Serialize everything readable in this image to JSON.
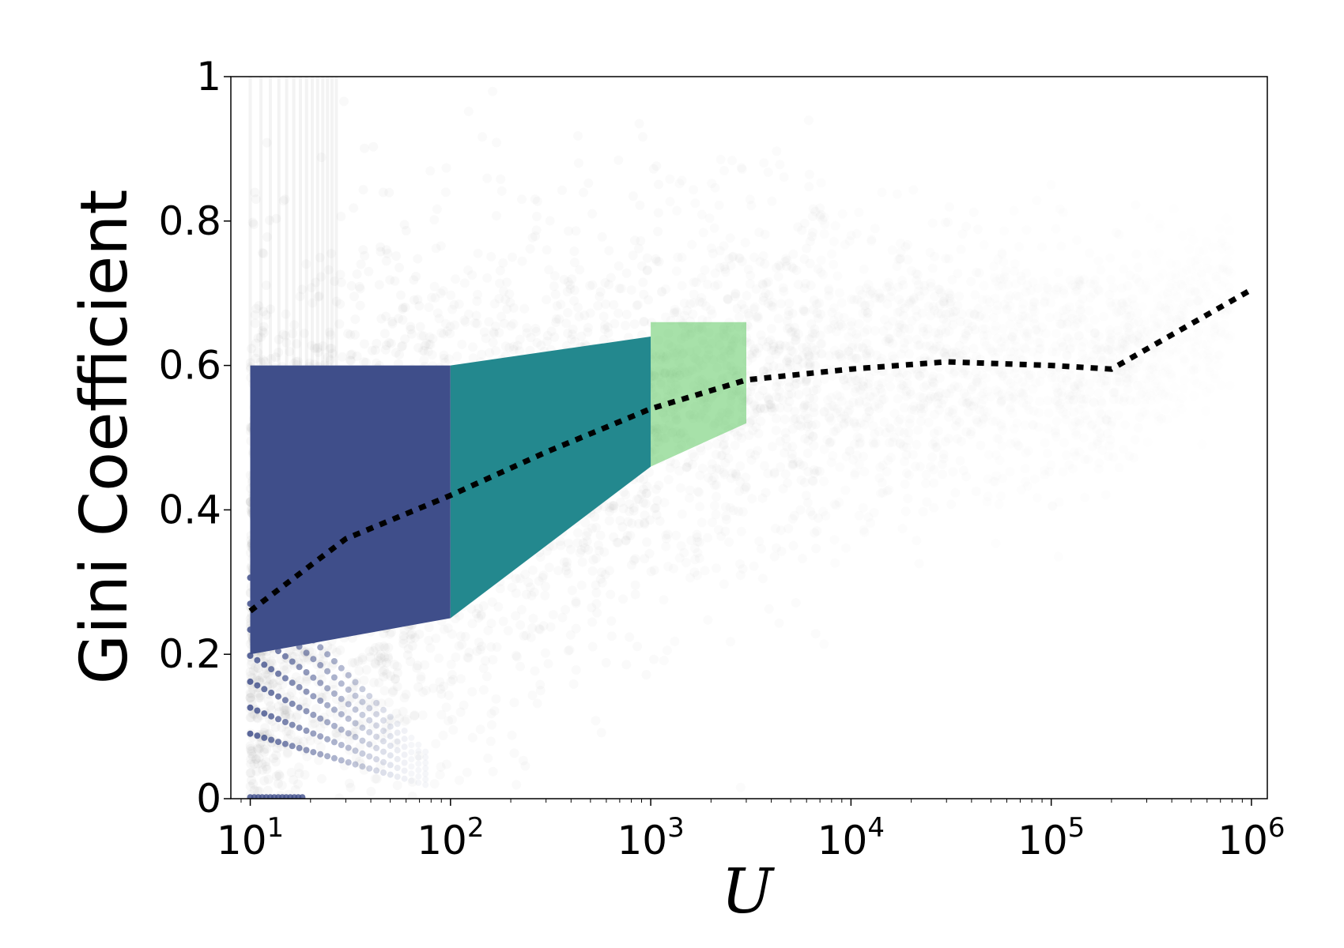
{
  "chart_data": {
    "type": "scatter",
    "title": "",
    "xlabel": "U",
    "ylabel": "Gini Coefficient",
    "xscale": "log",
    "xlim": [
      8,
      1200000
    ],
    "ylim": [
      0,
      1
    ],
    "grid": false,
    "legend": "none",
    "x_ticks": [
      {
        "value": 10,
        "base": "10",
        "exp": "1"
      },
      {
        "value": 100,
        "base": "10",
        "exp": "2"
      },
      {
        "value": 1000,
        "base": "10",
        "exp": "3"
      },
      {
        "value": 10000,
        "base": "10",
        "exp": "4"
      },
      {
        "value": 100000,
        "base": "10",
        "exp": "5"
      },
      {
        "value": 1000000,
        "base": "10",
        "exp": "6"
      }
    ],
    "y_ticks": [
      {
        "value": 0,
        "label": "0"
      },
      {
        "value": 0.2,
        "label": "0.2"
      },
      {
        "value": 0.4,
        "label": "0.4"
      },
      {
        "value": 0.6,
        "label": "0.6"
      },
      {
        "value": 0.8,
        "label": "0.8"
      },
      {
        "value": 1,
        "label": "1"
      }
    ],
    "colors": {
      "background_points": "#8c8c8c",
      "band_1": "#3f4e8a",
      "band_2": "#23888e",
      "band_3": "#5ec962",
      "trend_line": "#000000"
    },
    "highlighted_bands": [
      {
        "x_range": [
          10,
          100
        ],
        "y_range_start": [
          0.2,
          0.6
        ],
        "y_range_end": [
          0.25,
          0.6
        ],
        "color": "#3f4e8a"
      },
      {
        "x_range": [
          100,
          1000
        ],
        "y_range_start": [
          0.25,
          0.6
        ],
        "y_range_end": [
          0.46,
          0.64
        ],
        "color": "#23888e"
      },
      {
        "x_range": [
          1000,
          3000
        ],
        "y_range_start": [
          0.46,
          0.66
        ],
        "y_range_end": [
          0.52,
          0.66
        ],
        "color": "#5ec962"
      }
    ],
    "trend_line": {
      "style": "dotted",
      "x": [
        10,
        30,
        100,
        300,
        1000,
        3000,
        10000,
        30000,
        100000,
        200000,
        1000000
      ],
      "y": [
        0.26,
        0.36,
        0.42,
        0.48,
        0.54,
        0.58,
        0.595,
        0.605,
        0.6,
        0.595,
        0.705
      ]
    }
  }
}
